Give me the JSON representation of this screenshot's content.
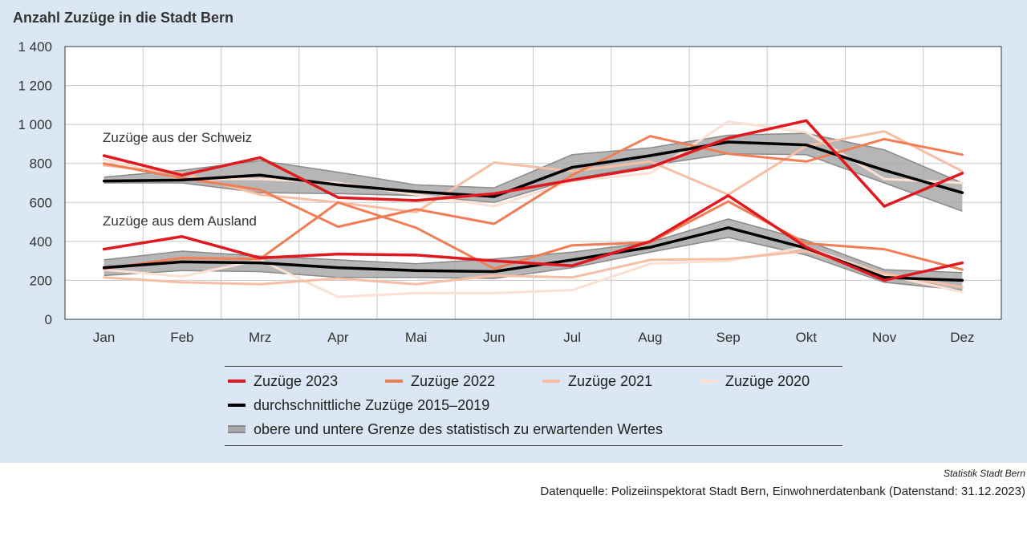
{
  "title": "Anzahl Zuzüge in die Stadt Bern",
  "credit": "Statistik Stadt Bern",
  "source": "Datenquelle: Polizeiinspektorat Stadt Bern, Einwohnerdatenbank (Datenstand: 31.12.2023)",
  "annotations": {
    "schweiz": "Zuzüge aus der Schweiz",
    "ausland": "Zuzüge aus dem Ausland"
  },
  "legend": {
    "s2023": "Zuzüge 2023",
    "s2022": "Zuzüge 2022",
    "s2021": "Zuzüge 2021",
    "s2020": "Zuzüge 2020",
    "avg": "durchschnittliche Zuzüge 2015–2019",
    "band": "obere und untere Grenze des statistisch zu erwartenden Wertes"
  },
  "chart_data": {
    "type": "line",
    "title": "Anzahl Zuzüge in die Stadt Bern",
    "categories": [
      "Jan",
      "Feb",
      "Mrz",
      "Apr",
      "Mai",
      "Jun",
      "Jul",
      "Aug",
      "Sep",
      "Okt",
      "Nov",
      "Dez"
    ],
    "yticks": [
      "0",
      "200",
      "400",
      "600",
      "800",
      "1 000",
      "1 200",
      "1 400"
    ],
    "ylim": [
      0,
      1400
    ],
    "grid": true,
    "legend_position": "bottom",
    "colors": {
      "s2023": "#e0191e",
      "s2022": "#f07d56",
      "s2021": "#f6bfa4",
      "s2020": "#fbe0d3",
      "avg": "#000000",
      "band_fill": "#a9a9a9",
      "band_line": "#8a8a8a"
    },
    "groups": [
      {
        "label": "Zuzüge aus der Schweiz",
        "band_upper": [
          730,
          765,
          815,
          755,
          690,
          675,
          845,
          880,
          945,
          955,
          870,
          700
        ],
        "band_lower": [
          700,
          700,
          650,
          645,
          635,
          600,
          720,
          790,
          850,
          845,
          700,
          555
        ],
        "series": [
          {
            "key": "s2020",
            "values": [
              820,
              720,
              720,
              700,
              640,
              580,
              710,
              750,
              1015,
              960,
              720,
              700
            ]
          },
          {
            "key": "s2021",
            "values": [
              790,
              750,
              640,
              600,
              550,
              805,
              760,
              810,
              640,
              890,
              965,
              760
            ]
          },
          {
            "key": "s2022",
            "values": [
              800,
              725,
              665,
              475,
              565,
              490,
              740,
              940,
              850,
              810,
              925,
              845
            ]
          },
          {
            "key": "avg",
            "values": [
              710,
              715,
              740,
              690,
              655,
              630,
              780,
              840,
              910,
              895,
              765,
              650
            ]
          },
          {
            "key": "s2023",
            "values": [
              840,
              740,
              830,
              625,
              610,
              645,
              715,
              780,
              930,
              1020,
              580,
              750
            ]
          }
        ]
      },
      {
        "label": "Zuzüge aus dem Ausland",
        "band_upper": [
          305,
          350,
          325,
          305,
          285,
          310,
          345,
          395,
          515,
          405,
          255,
          240
        ],
        "band_lower": [
          225,
          250,
          245,
          215,
          215,
          210,
          265,
          345,
          420,
          330,
          190,
          150
        ],
        "series": [
          {
            "key": "s2020",
            "values": [
              255,
              220,
              305,
              115,
              135,
              135,
              150,
              285,
              300,
              370,
              230,
              140
            ]
          },
          {
            "key": "s2021",
            "values": [
              215,
              190,
              180,
              210,
              180,
              225,
              215,
              305,
              310,
              350,
              235,
              165
            ]
          },
          {
            "key": "s2022",
            "values": [
              260,
              315,
              310,
              600,
              470,
              260,
              380,
              395,
              605,
              390,
              360,
              255
            ]
          },
          {
            "key": "avg",
            "values": [
              265,
              295,
              290,
              265,
              250,
              245,
              305,
              370,
              470,
              365,
              215,
              200
            ]
          },
          {
            "key": "s2023",
            "values": [
              360,
              425,
              315,
              335,
              330,
              300,
              275,
              400,
              635,
              370,
              200,
              290
            ]
          }
        ]
      }
    ]
  }
}
